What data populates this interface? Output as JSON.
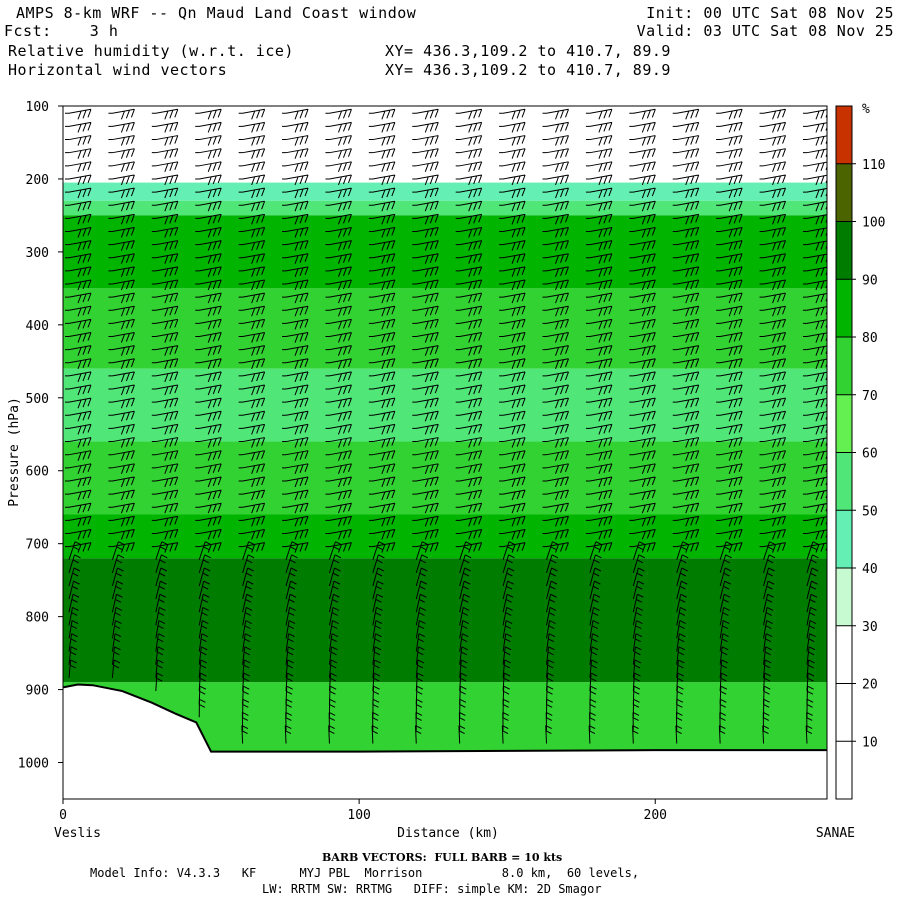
{
  "header": {
    "line1_left": "AMPS 8-km WRF -- Qn Maud Land Coast window",
    "line2_left": "Fcst:    3 h",
    "line3_left": "Relative humidity (w.r.t. ice)",
    "line4_left": "Horizontal wind vectors",
    "line1_right": "Init: 00 UTC Sat 08 Nov 25",
    "line2_right": "Valid: 03 UTC Sat 08 Nov 25",
    "line3_right": "XY= 436.3,109.2 to 410.7, 89.9",
    "line4_right": "XY= 436.3,109.2 to 410.7, 89.9"
  },
  "footer": {
    "barb_note": "BARB VECTORS:  FULL BARB = 10 kts",
    "model_info": "Model Info: V4.3.3   KF      MYJ PBL  Morrison           8.0 km,  60 levels,",
    "model_info2": "LW: RRTM SW: RRTMG   DIFF: simple KM: 2D Smagor"
  },
  "chart_data": {
    "type": "heatmap",
    "title": "Relative humidity (w.r.t. ice)",
    "xlabel": "Distance (km)",
    "ylabel": "Pressure (hPa)",
    "xlim": [
      0,
      258
    ],
    "ylim": [
      1050,
      100
    ],
    "x_ticks": [
      0,
      100,
      200
    ],
    "y_ticks": [
      100,
      200,
      300,
      400,
      500,
      600,
      700,
      800,
      900,
      1000
    ],
    "x_endpoints": {
      "left": "Veslis",
      "right": "SANAE"
    },
    "colorbar": {
      "unit": "%",
      "levels": [
        10,
        20,
        30,
        40,
        50,
        60,
        70,
        80,
        90,
        100,
        110
      ],
      "colors": [
        "#ffffff",
        "#ffffff",
        "#ffffff",
        "#c8fad2",
        "#64f0b4",
        "#50e678",
        "#64f050",
        "#32d232",
        "#00b400",
        "#007d00",
        "#4b6400",
        "#c83200"
      ]
    },
    "rh_layers": [
      {
        "top_hpa": 205,
        "bottom_hpa": 230,
        "rh": 40
      },
      {
        "top_hpa": 230,
        "bottom_hpa": 250,
        "rh": 50
      },
      {
        "top_hpa": 250,
        "bottom_hpa": 350,
        "rh": 80
      },
      {
        "top_hpa": 350,
        "bottom_hpa": 460,
        "rh": 70
      },
      {
        "top_hpa": 460,
        "bottom_hpa": 560,
        "rh": 55
      },
      {
        "top_hpa": 560,
        "bottom_hpa": 660,
        "rh": 70
      },
      {
        "top_hpa": 660,
        "bottom_hpa": 720,
        "rh": 80
      },
      {
        "top_hpa": 720,
        "bottom_hpa": 890,
        "rh": 95
      },
      {
        "top_hpa": 890,
        "bottom_hpa": 985,
        "rh": 75
      }
    ],
    "terrain_profile": {
      "distance_km": [
        0,
        5,
        10,
        20,
        30,
        38,
        45,
        50,
        100,
        150,
        200,
        258
      ],
      "pressure_hpa": [
        897,
        893,
        894,
        902,
        918,
        933,
        945,
        985,
        985,
        984,
        983,
        983
      ]
    },
    "wind_barbs": "full barb = 10 kts"
  }
}
